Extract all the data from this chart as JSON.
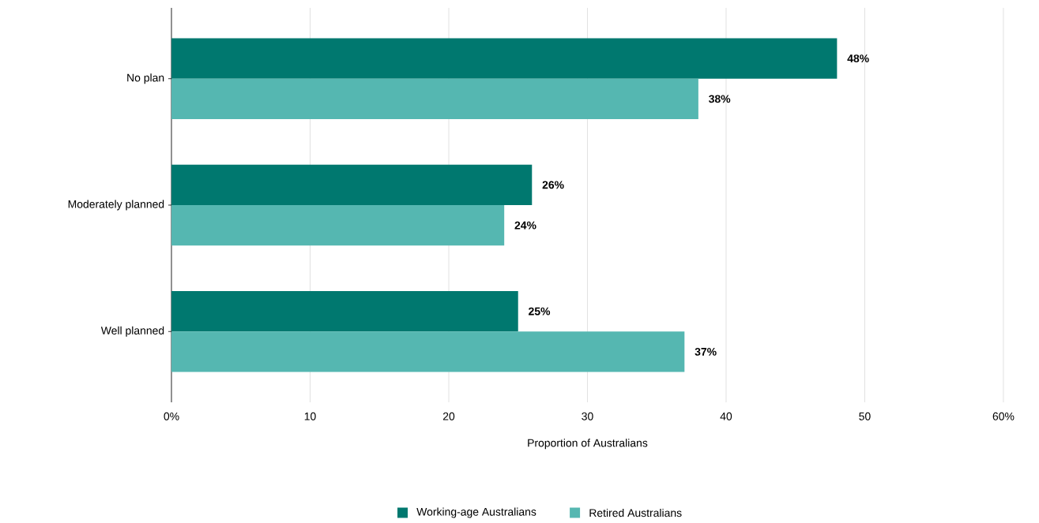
{
  "chart_data": {
    "type": "bar",
    "orientation": "horizontal",
    "xlabel": "Proportion of Australians",
    "categories": [
      "No plan",
      "Moderately planned",
      "Well planned"
    ],
    "series": [
      {
        "name": "Working-age Australians",
        "color": "#00786f",
        "values": [
          48,
          26,
          25
        ],
        "value_labels": [
          "48%",
          "26%",
          "25%"
        ]
      },
      {
        "name": "Retired Australians",
        "color": "#55b7b1",
        "values": [
          38,
          24,
          37
        ],
        "value_labels": [
          "38%",
          "24%",
          "37%"
        ]
      }
    ],
    "xlim": [
      0,
      60
    ],
    "xticks": [
      {
        "value": 0,
        "label": "0%"
      },
      10,
      20,
      30,
      40,
      {
        "value": 60,
        "label": "60%"
      },
      50
    ],
    "grid": "x",
    "legend": "bottom"
  }
}
